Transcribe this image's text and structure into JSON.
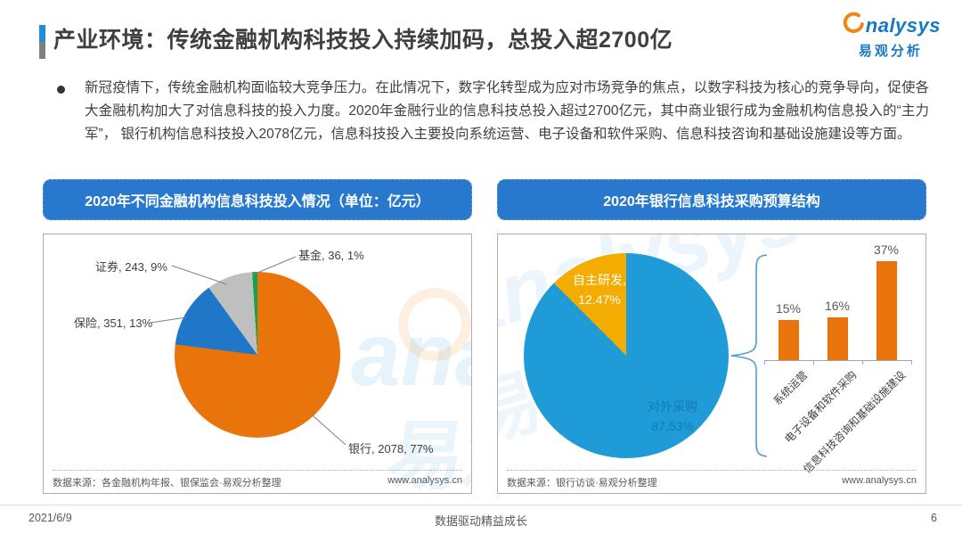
{
  "slide": {
    "title": "产业环境：传统金融机构科技投入持续加码，总投入超2700亿",
    "bullet_text": "新冠疫情下，传统金融机构面临较大竞争压力。在此情况下，数字化转型成为应对市场竞争的焦点，以数字科技为核心的竞争导向，促使各大金融机构加大了对信息科技的投入力度。2020年金融行业的信息科技总投入超过2700亿元，其中商业银行成为金融机构信息投入的“主力军”， 银行机构信息科技投入2078亿元，信息科技投入主要投向系统运营、电子设备和软件采购、信息科技咨询和基础设施建设等方面。",
    "footer": {
      "date": "2021/6/9",
      "slogan": "数据驱动精益成长",
      "page_number": "6"
    }
  },
  "logo": {
    "brand_latin": "nalysys",
    "brand_cn": "易观分析"
  },
  "watermark": {
    "latin": "analysys",
    "cn": "易观"
  },
  "left_panel": {
    "header": "2020年不同金融机构信息科技投入情况（单位：亿元）",
    "source": "数据来源：各金融机构年报、银保监会·易观分析整理",
    "website": "www.analysys.cn"
  },
  "right_panel": {
    "header": "2020年银行信息科技采购预算结构",
    "source": "数据来源：银行访谈·易观分析整理",
    "website": "www.analysys.cn"
  },
  "chart_data": [
    {
      "type": "pie",
      "title": "2020年不同金融机构信息科技投入情况",
      "unit": "亿元",
      "slices": [
        {
          "label": "银行",
          "value": 2078,
          "percent": 77,
          "color": "#E8740B"
        },
        {
          "label": "保险",
          "value": 351,
          "percent": 13,
          "color": "#2077C8"
        },
        {
          "label": "证券",
          "value": 243,
          "percent": 9,
          "color": "#BFBFBF"
        },
        {
          "label": "基金",
          "value": 36,
          "percent": 1,
          "color": "#14A24A"
        }
      ],
      "display_labels": [
        "银行, 2078, 77%",
        "保险, 351, 13%",
        "证券, 243, 9%",
        "基金, 36, 1%"
      ],
      "start_angle_deg": 0,
      "direction": "clockwise",
      "legend": "none"
    },
    {
      "type": "pie",
      "title": "2020年银行信息科技采购预算结构",
      "slices": [
        {
          "label": "对外采购",
          "percent": 87.53,
          "color": "#1F9CD8"
        },
        {
          "label": "自主研发",
          "percent": 12.47,
          "color": "#F5AC00"
        }
      ],
      "inside_labels": [
        {
          "name": "对外采购",
          "pct": "87.53%"
        },
        {
          "name": "自主研发,",
          "pct": "12.47%"
        }
      ],
      "start_angle_deg": 0,
      "direction": "clockwise",
      "legend": "none"
    },
    {
      "type": "bar",
      "title": "银行信息科技投入方向占比",
      "categories": [
        "系统运营",
        "电子设备和软件采购",
        "信息科技咨询和基础设施建设"
      ],
      "values": [
        15,
        16,
        37
      ],
      "value_labels": [
        "15%",
        "16%",
        "37%"
      ],
      "bar_color": "#E8740B",
      "ylim": [
        0,
        40
      ],
      "grid": "off",
      "axis_labels_rotation_deg": -45
    }
  ]
}
